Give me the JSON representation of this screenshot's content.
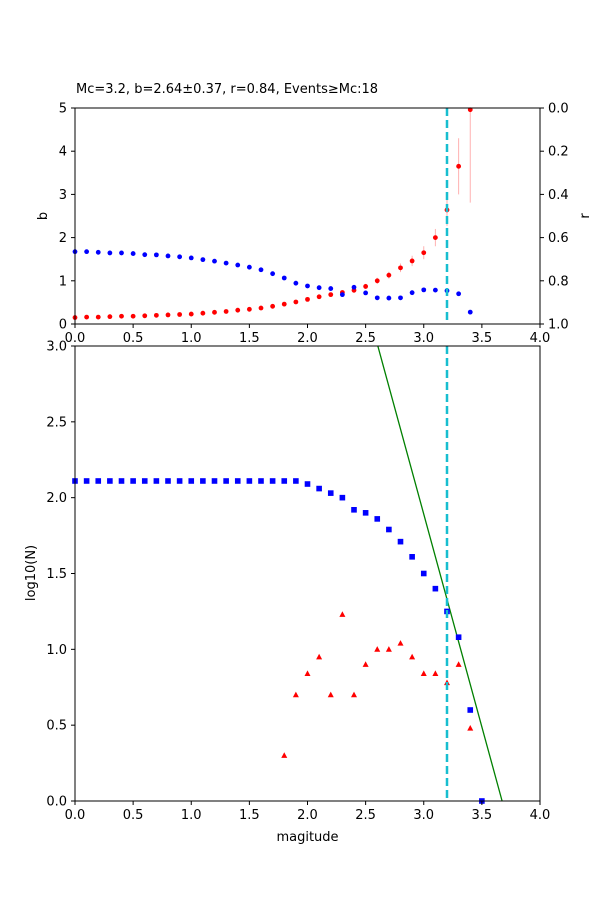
{
  "chart_data": [
    {
      "type": "scatter",
      "title": "Mc=3.2, b=2.64±0.37, r=0.84, Events≥Mc:18",
      "xlabel": "",
      "ylabel": "b",
      "ylabel_right": "r",
      "xlim": [
        0,
        4
      ],
      "ylim": [
        0,
        5
      ],
      "ylim_right": [
        1.0,
        0.0
      ],
      "x_ticks": [
        "0.0",
        "0.5",
        "1.0",
        "1.5",
        "2.0",
        "2.5",
        "3.0",
        "3.5",
        "4.0"
      ],
      "y_ticks": [
        "0",
        "1",
        "2",
        "3",
        "4",
        "5"
      ],
      "y_ticks_right": [
        "0.0",
        "0.2",
        "0.4",
        "0.6",
        "0.8",
        "1.0"
      ],
      "colors": {
        "b_series": "#ff0000",
        "b_errorbar": "#ffb0b0",
        "r_series": "#0000ff",
        "mc_line": "#17becf"
      },
      "vline_x": 3.2,
      "series": [
        {
          "x": [
            0.0,
            0.1,
            0.2,
            0.3,
            0.4,
            0.5,
            0.6,
            0.7,
            0.8,
            0.9,
            1.0,
            1.1,
            1.2,
            1.3,
            1.4,
            1.5,
            1.6,
            1.7,
            1.8,
            1.9,
            2.0,
            2.1,
            2.2,
            2.3,
            2.4,
            2.5,
            2.6,
            2.7,
            2.8,
            2.9,
            3.0,
            3.1,
            3.2,
            3.3,
            3.4
          ],
          "values": [
            0.15,
            0.16,
            0.16,
            0.17,
            0.18,
            0.18,
            0.19,
            0.2,
            0.21,
            0.22,
            0.23,
            0.25,
            0.27,
            0.29,
            0.32,
            0.34,
            0.37,
            0.41,
            0.46,
            0.51,
            0.57,
            0.63,
            0.68,
            0.73,
            0.78,
            0.87,
            1.0,
            1.13,
            1.3,
            1.46,
            1.65,
            2.0,
            2.64,
            3.65,
            4.96
          ],
          "errors": [
            0.02,
            0.02,
            0.02,
            0.02,
            0.02,
            0.02,
            0.02,
            0.02,
            0.02,
            0.02,
            0.02,
            0.02,
            0.02,
            0.02,
            0.02,
            0.03,
            0.03,
            0.03,
            0.03,
            0.04,
            0.04,
            0.04,
            0.05,
            0.05,
            0.05,
            0.06,
            0.07,
            0.08,
            0.1,
            0.12,
            0.15,
            0.2,
            0.37,
            0.65,
            2.15
          ]
        },
        {
          "axis": "right",
          "x": [
            0.0,
            0.1,
            0.2,
            0.3,
            0.4,
            0.5,
            0.6,
            0.7,
            0.8,
            0.9,
            1.0,
            1.1,
            1.2,
            1.3,
            1.4,
            1.5,
            1.6,
            1.7,
            1.8,
            1.9,
            2.0,
            2.1,
            2.2,
            2.3,
            2.4,
            2.5,
            2.6,
            2.7,
            2.8,
            2.9,
            3.0,
            3.1,
            3.2,
            3.3,
            3.4
          ],
          "values": [
            0.665,
            0.665,
            0.668,
            0.671,
            0.671,
            0.674,
            0.679,
            0.68,
            0.685,
            0.689,
            0.694,
            0.702,
            0.709,
            0.718,
            0.727,
            0.737,
            0.749,
            0.767,
            0.787,
            0.811,
            0.824,
            0.832,
            0.836,
            0.864,
            0.83,
            0.856,
            0.879,
            0.88,
            0.879,
            0.855,
            0.842,
            0.843,
            0.846,
            0.86,
            0.945
          ]
        }
      ]
    },
    {
      "type": "scatter",
      "title": "",
      "xlabel": "magitude",
      "ylabel": "log10(N)",
      "xlim": [
        0,
        4
      ],
      "ylim": [
        0,
        3
      ],
      "x_ticks": [
        "0.0",
        "0.5",
        "1.0",
        "1.5",
        "2.0",
        "2.5",
        "3.0",
        "3.5",
        "4.0"
      ],
      "y_ticks": [
        "0.0",
        "0.5",
        "1.0",
        "1.5",
        "2.0",
        "2.5",
        "3.0"
      ],
      "colors": {
        "cumulative": "#0000ff",
        "noncumulative": "#ff0000",
        "fit_line": "#008000",
        "mc_line": "#17becf"
      },
      "vline_x": 3.2,
      "fit_line": {
        "x": [
          2.605,
          3.674
        ],
        "y": [
          3.0,
          0.0
        ]
      },
      "series": [
        {
          "x": [
            0.0,
            0.1,
            0.2,
            0.3,
            0.4,
            0.5,
            0.6,
            0.7,
            0.8,
            0.9,
            1.0,
            1.1,
            1.2,
            1.3,
            1.4,
            1.5,
            1.6,
            1.7,
            1.8,
            1.9,
            2.0,
            2.1,
            2.2,
            2.3,
            2.4,
            2.5,
            2.6,
            2.7,
            2.8,
            2.9,
            3.0,
            3.1,
            3.2,
            3.3,
            3.4,
            3.5
          ],
          "values": [
            2.11,
            2.11,
            2.11,
            2.11,
            2.11,
            2.11,
            2.11,
            2.11,
            2.11,
            2.11,
            2.11,
            2.11,
            2.11,
            2.11,
            2.11,
            2.11,
            2.11,
            2.11,
            2.11,
            2.11,
            2.09,
            2.06,
            2.03,
            2.0,
            1.92,
            1.9,
            1.86,
            1.79,
            1.71,
            1.61,
            1.5,
            1.4,
            1.25,
            1.08,
            0.6,
            0.0
          ]
        },
        {
          "x": [
            1.8,
            1.9,
            2.0,
            2.1,
            2.2,
            2.3,
            2.4,
            2.5,
            2.6,
            2.7,
            2.8,
            2.9,
            3.0,
            3.1,
            3.2,
            3.3,
            3.4
          ],
          "values": [
            0.3,
            0.7,
            0.84,
            0.95,
            0.7,
            1.23,
            0.7,
            0.9,
            1.0,
            1.0,
            1.04,
            0.95,
            0.84,
            0.84,
            0.78,
            0.9,
            0.48
          ]
        }
      ]
    }
  ]
}
